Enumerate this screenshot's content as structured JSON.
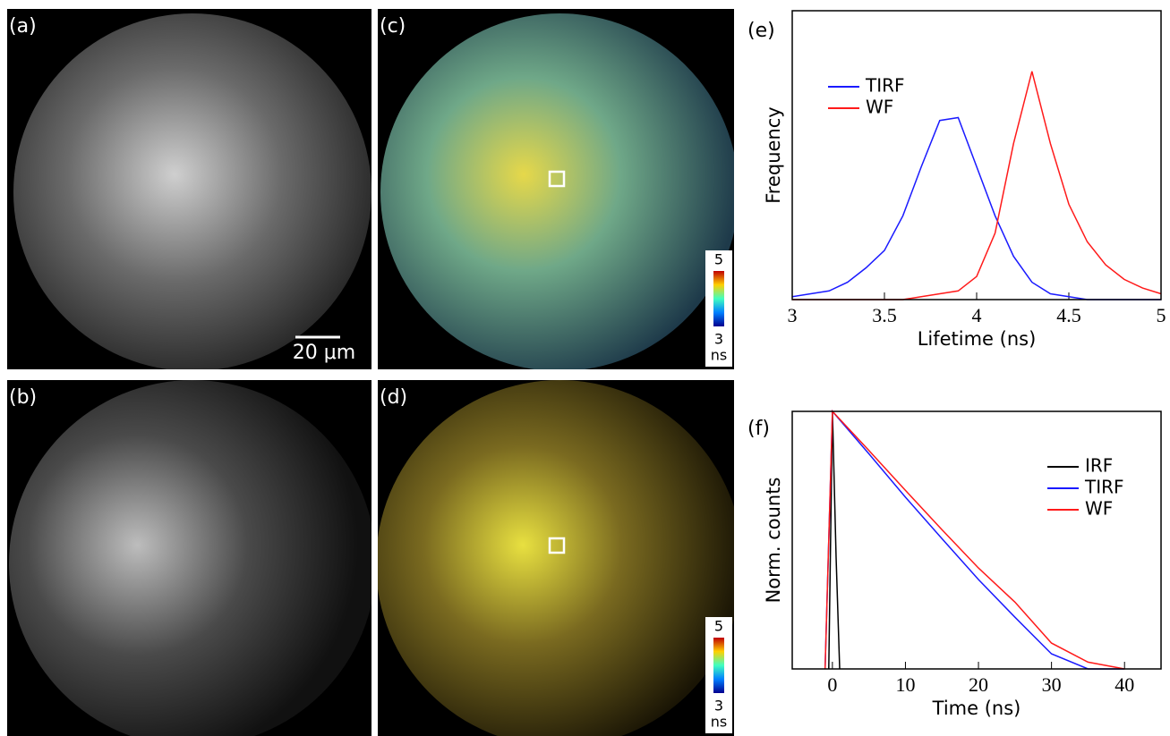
{
  "panels": {
    "a": {
      "label": "(a)",
      "scale_bar": "20 μm"
    },
    "b": {
      "label": "(b)"
    },
    "c": {
      "label": "(c)",
      "colorbar": {
        "max": 5,
        "min": 3,
        "unit": "ns"
      }
    },
    "d": {
      "label": "(d)",
      "colorbar": {
        "max": 5,
        "min": 3,
        "unit": "ns"
      }
    }
  },
  "chart_data": [
    {
      "type": "line",
      "label": "(e)",
      "xlabel": "Lifetime (ns)",
      "ylabel": "Frequency",
      "x": [
        3.0,
        3.1,
        3.2,
        3.3,
        3.4,
        3.5,
        3.6,
        3.7,
        3.8,
        3.9,
        4.0,
        4.1,
        4.2,
        4.3,
        4.4,
        4.5,
        4.6,
        4.7,
        4.8,
        4.9,
        5.0
      ],
      "series": [
        {
          "name": "TIRF",
          "color": "#1a1aff",
          "values": [
            0.01,
            0.02,
            0.03,
            0.06,
            0.11,
            0.17,
            0.29,
            0.46,
            0.62,
            0.63,
            0.46,
            0.29,
            0.15,
            0.06,
            0.02,
            0.01,
            0,
            0,
            0,
            0,
            0
          ]
        },
        {
          "name": "WF",
          "color": "#ff1a1a",
          "values": [
            0,
            0,
            0,
            0,
            0,
            0,
            0,
            0.01,
            0.02,
            0.03,
            0.08,
            0.23,
            0.54,
            0.79,
            0.54,
            0.33,
            0.2,
            0.12,
            0.07,
            0.04,
            0.02
          ]
        }
      ],
      "xlim": [
        3,
        5
      ],
      "xticks": [
        3,
        3.5,
        4,
        4.5,
        5
      ],
      "ylim": [
        0,
        1
      ],
      "legend": "upper-left"
    },
    {
      "type": "line",
      "label": "(f)",
      "xlabel": "Time (ns)",
      "ylabel": "Norm. counts",
      "log_y": true,
      "series": [
        {
          "name": "IRF",
          "color": "#000000",
          "x": [
            -0.5,
            0,
            0.5,
            1
          ],
          "values": [
            0.001,
            1,
            0.02,
            0.001
          ]
        },
        {
          "name": "TIRF",
          "color": "#1a1aff",
          "x": [
            -1,
            0,
            5,
            10,
            15,
            20,
            25,
            30,
            35,
            40
          ],
          "values": [
            0.001,
            1,
            0.32,
            0.1,
            0.033,
            0.011,
            0.004,
            0.0015,
            0.001,
            0.001
          ]
        },
        {
          "name": "WF",
          "color": "#ff1a1a",
          "x": [
            -1,
            0,
            5,
            10,
            15,
            20,
            25,
            30,
            35,
            40
          ],
          "values": [
            0.001,
            1,
            0.35,
            0.12,
            0.042,
            0.015,
            0.006,
            0.002,
            0.0012,
            0.001
          ]
        }
      ],
      "xlim": [
        -5.5,
        45
      ],
      "xticks": [
        0,
        10,
        20,
        30,
        40
      ],
      "ylim": [
        0.001,
        1
      ],
      "legend": "right"
    }
  ]
}
